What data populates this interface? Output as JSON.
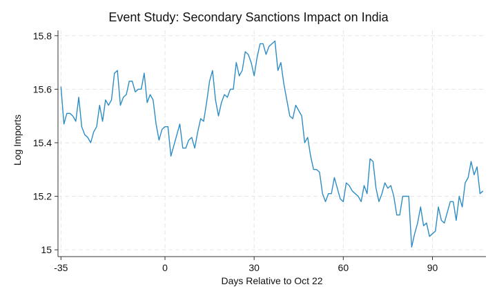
{
  "chart_data": {
    "type": "line",
    "title": "Event Study: Secondary Sanctions Impact on India",
    "xlabel": "Days Relative to Oct 22",
    "ylabel": "Log Imports",
    "xlim": [
      -36,
      108
    ],
    "ylim": [
      14.99,
      15.82
    ],
    "grid": true,
    "x_ticks": [
      -35,
      0,
      30,
      60,
      90
    ],
    "y_ticks": [
      15,
      15.2,
      15.4,
      15.6,
      15.8
    ],
    "x_tick_labels": [
      "-35",
      "0",
      "30",
      "60",
      "90"
    ],
    "y_tick_labels": [
      "15",
      "15.2",
      "15.4",
      "15.6",
      "15.8"
    ],
    "series": [
      {
        "color": "#2b8cc4",
        "x": [
          -35,
          -34,
          -33,
          -32,
          -31,
          -30,
          -29,
          -28,
          -27,
          -26,
          -25,
          -24,
          -23,
          -22,
          -21,
          -20,
          -19,
          -18,
          -17,
          -16,
          -15,
          -14,
          -13,
          -12,
          -11,
          -10,
          -9,
          -8,
          -7,
          -6,
          -5,
          -4,
          -3,
          -2,
          -1,
          0,
          1,
          2,
          3,
          4,
          5,
          6,
          7,
          8,
          9,
          10,
          11,
          12,
          13,
          14,
          15,
          16,
          17,
          18,
          19,
          20,
          21,
          22,
          23,
          24,
          25,
          26,
          27,
          28,
          29,
          30,
          31,
          32,
          33,
          34,
          35,
          36,
          37,
          38,
          39,
          40,
          41,
          42,
          43,
          44,
          45,
          46,
          47,
          48,
          49,
          50,
          51,
          52,
          53,
          54,
          55,
          56,
          57,
          58,
          59,
          60,
          61,
          62,
          63,
          64,
          65,
          66,
          67,
          68,
          69,
          70,
          71,
          72,
          73,
          74,
          75,
          76,
          77,
          78,
          79,
          80,
          81,
          82,
          83,
          84,
          85,
          86,
          87,
          88,
          89,
          90,
          91,
          92,
          93,
          94,
          95,
          96,
          97,
          98,
          99,
          100,
          101,
          102,
          103,
          104,
          105,
          106,
          107
        ],
        "values": [
          15.61,
          15.47,
          15.51,
          15.51,
          15.5,
          15.48,
          15.57,
          15.46,
          15.43,
          15.42,
          15.4,
          15.44,
          15.46,
          15.54,
          15.48,
          15.56,
          15.54,
          15.56,
          15.66,
          15.67,
          15.54,
          15.57,
          15.58,
          15.63,
          15.63,
          15.59,
          15.6,
          15.6,
          15.66,
          15.55,
          15.58,
          15.56,
          15.47,
          15.41,
          15.45,
          15.46,
          15.46,
          15.35,
          15.39,
          15.43,
          15.47,
          15.38,
          15.38,
          15.41,
          15.42,
          15.38,
          15.44,
          15.49,
          15.48,
          15.55,
          15.63,
          15.67,
          15.56,
          15.5,
          15.55,
          15.58,
          15.57,
          15.6,
          15.6,
          15.7,
          15.65,
          15.67,
          15.74,
          15.73,
          15.7,
          15.65,
          15.72,
          15.77,
          15.77,
          15.73,
          15.76,
          15.77,
          15.78,
          15.67,
          15.7,
          15.62,
          15.56,
          15.5,
          15.49,
          15.54,
          15.52,
          15.5,
          15.4,
          15.42,
          15.35,
          15.3,
          15.3,
          15.29,
          15.21,
          15.18,
          15.21,
          15.21,
          15.27,
          15.23,
          15.19,
          15.18,
          15.25,
          15.24,
          15.22,
          15.21,
          15.2,
          15.18,
          15.24,
          15.21,
          15.34,
          15.33,
          15.23,
          15.18,
          15.21,
          15.25,
          15.23,
          15.24,
          15.2,
          15.13,
          15.13,
          15.2,
          15.2,
          15.2,
          15.01,
          15.06,
          15.1,
          15.16,
          15.09,
          15.1,
          15.05,
          15.06,
          15.07,
          15.16,
          15.11,
          15.1,
          15.14,
          15.18,
          15.18,
          15.11,
          15.2,
          15.16,
          15.25,
          15.27,
          15.33,
          15.28,
          15.31,
          15.21,
          15.22
        ]
      }
    ]
  }
}
